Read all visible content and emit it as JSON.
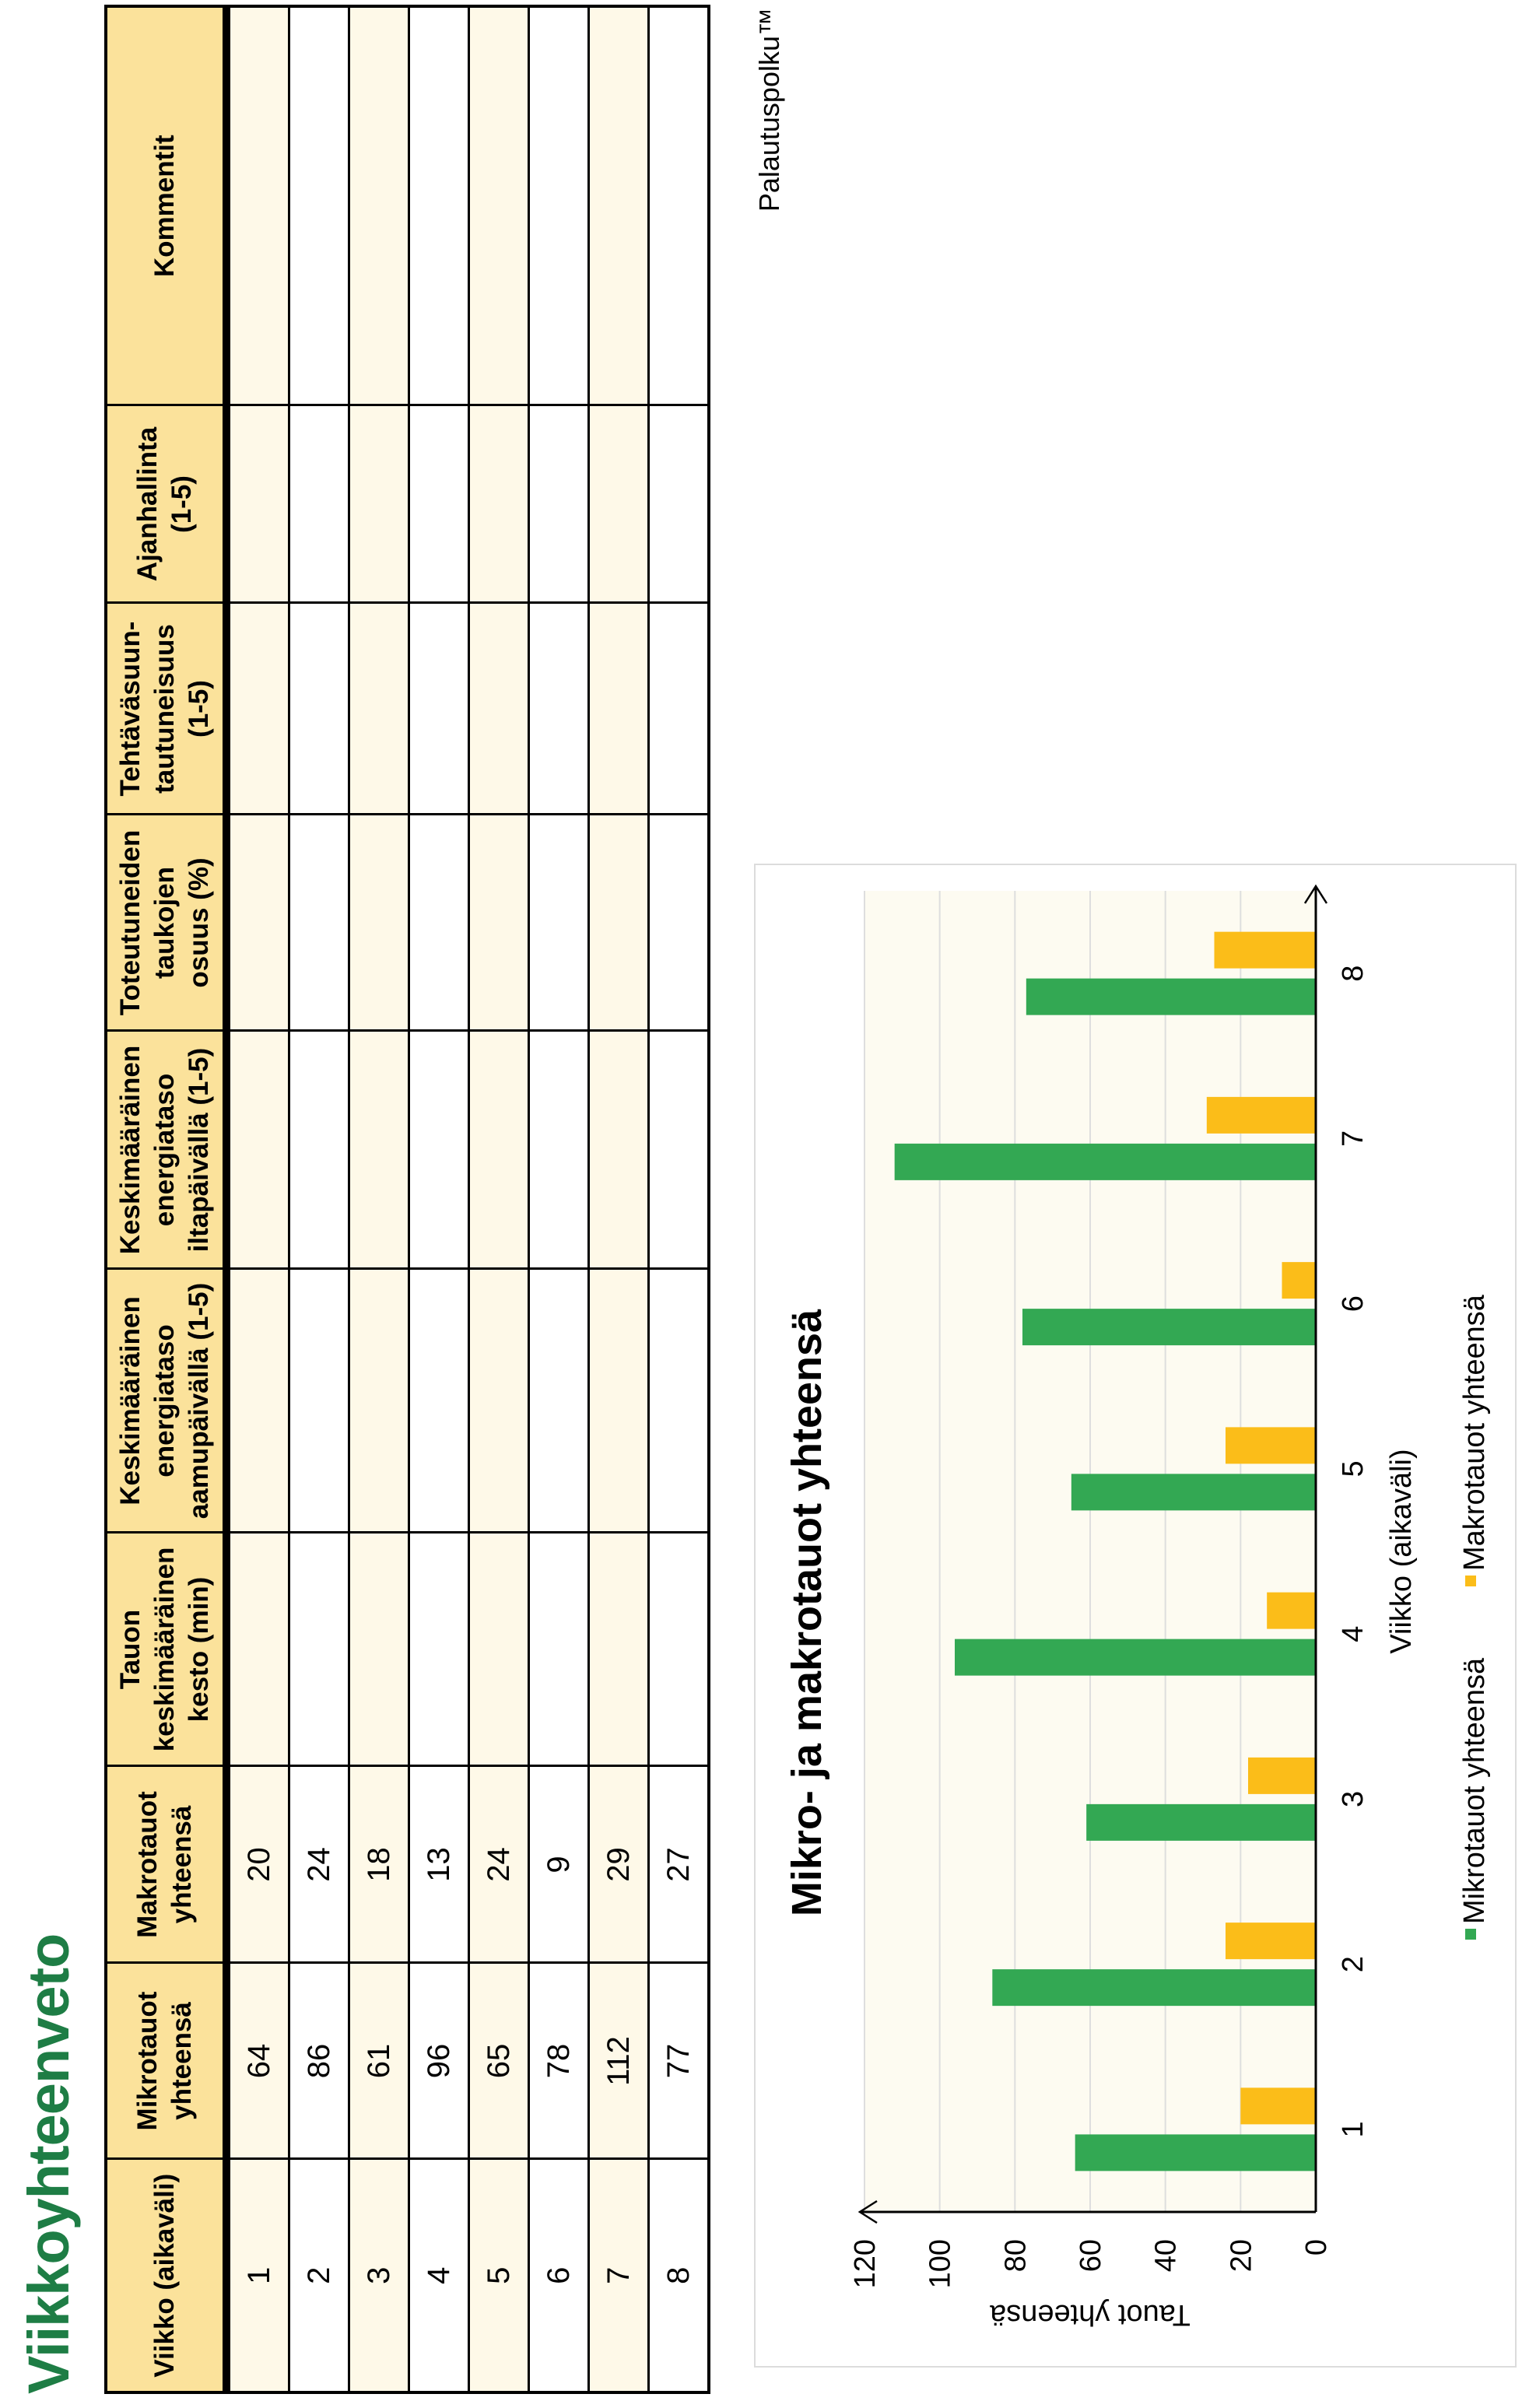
{
  "page": {
    "title": "Viikkoyhteenveto",
    "brand": "Palautuspolku™"
  },
  "table": {
    "headers": [
      "Viikko (aikaväli)",
      "Mikrotauot yhteensä",
      "Makrotauot yhteensä",
      "Tauon keskimääräinen kesto (min)",
      "Keskimääräinen energiataso aamupäivällä (1-5)",
      "Keskimääräinen energiataso iltapäivällä (1-5)",
      "Toteutuneiden taukojen osuus (%)",
      "Tehtäväsuun-tautuneisuus (1-5)",
      "Ajanhallinta (1-5)",
      "Kommentit"
    ],
    "header_lines": [
      [
        "Viikko (aikaväli)"
      ],
      [
        "Mikrotauot",
        "yhteensä"
      ],
      [
        "Makrotauot",
        "yhteensä"
      ],
      [
        "Tauon",
        "keskimääräinen",
        "kesto (min)"
      ],
      [
        "Keskimääräinen",
        "energiataso",
        "aamupäivällä (1-5)"
      ],
      [
        "Keskimääräinen",
        "energiataso",
        "iltapäivällä (1-5)"
      ],
      [
        "Toteutuneiden",
        "taukojen",
        "osuus (%)"
      ],
      [
        "Tehtäväsuun-",
        "tautuneisuus",
        "(1-5)"
      ],
      [
        "Ajanhallinta",
        "(1-5)"
      ],
      [
        "Kommentit"
      ]
    ],
    "rows": [
      [
        "1",
        "64",
        "20",
        "",
        "",
        "",
        "",
        "",
        "",
        ""
      ],
      [
        "2",
        "86",
        "24",
        "",
        "",
        "",
        "",
        "",
        "",
        ""
      ],
      [
        "3",
        "61",
        "18",
        "",
        "",
        "",
        "",
        "",
        "",
        ""
      ],
      [
        "4",
        "96",
        "13",
        "",
        "",
        "",
        "",
        "",
        "",
        ""
      ],
      [
        "5",
        "65",
        "24",
        "",
        "",
        "",
        "",
        "",
        "",
        ""
      ],
      [
        "6",
        "78",
        "9",
        "",
        "",
        "",
        "",
        "",
        "",
        ""
      ],
      [
        "7",
        "112",
        "29",
        "",
        "",
        "",
        "",
        "",
        "",
        ""
      ],
      [
        "8",
        "77",
        "27",
        "",
        "",
        "",
        "",
        "",
        "",
        ""
      ]
    ]
  },
  "colors": {
    "title": "#1e7d45",
    "header_bg": "#fbe29b",
    "row_alt_bg": "#fef9e8",
    "micro": "#33a853",
    "macro": "#fbbd19",
    "plot_bg": "#fdfbf1",
    "grid": "#dedede"
  },
  "chart_data": {
    "type": "bar",
    "title": "Mikro- ja makrotauot yhteensä",
    "xlabel": "Viikko (aikaväli)",
    "ylabel": "Tauot yhteensä",
    "categories": [
      "1",
      "2",
      "3",
      "4",
      "5",
      "6",
      "7",
      "8"
    ],
    "series": [
      {
        "name": "Mikrotauot yhteensä",
        "values": [
          64,
          86,
          61,
          96,
          65,
          78,
          112,
          77
        ]
      },
      {
        "name": "Makrotauot yhteensä",
        "values": [
          20,
          24,
          18,
          13,
          24,
          9,
          29,
          27
        ]
      }
    ],
    "ylim": [
      0,
      120
    ],
    "yticks": [
      0,
      20,
      40,
      60,
      80,
      100,
      120
    ],
    "grid": true,
    "legend": "bottom"
  }
}
